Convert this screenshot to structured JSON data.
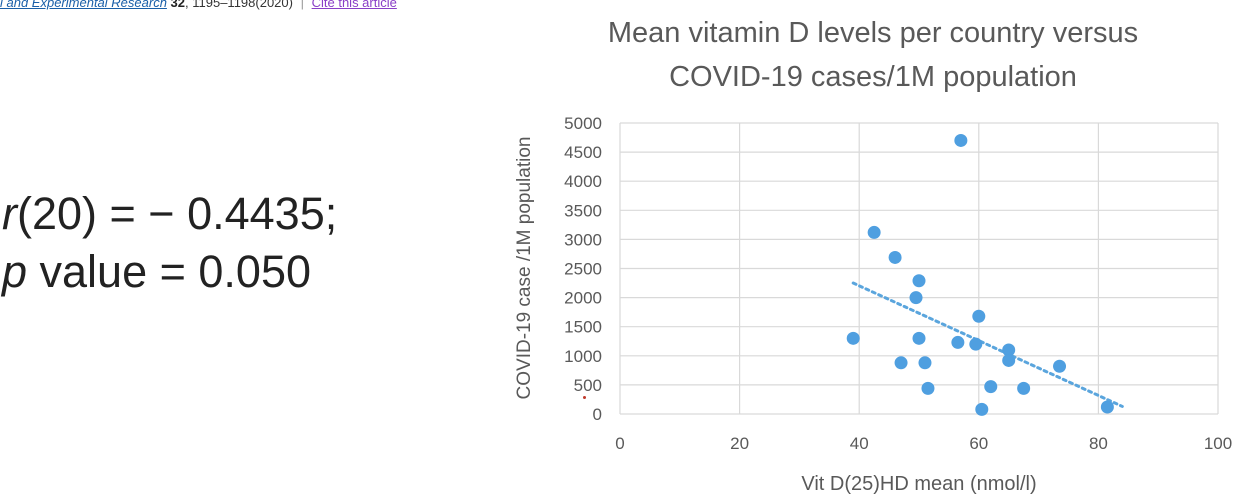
{
  "citation": {
    "journal": "l and Experimental Research",
    "volume": "32",
    "pages": "1195–1198(2020)",
    "separator": "|",
    "cite_link": "Cite this article"
  },
  "stats": {
    "r_var": "r",
    "r_rest": "(20) = − 0.4435;",
    "p_var": "p",
    "p_rest": " value = 0.050"
  },
  "chart_data": {
    "type": "scatter",
    "title": [
      "Mean vitamin D  levels per country versus",
      "COVID-19 cases/1M population"
    ],
    "xlabel": "Vit D(25)HD mean (nmol/l)",
    "ylabel": "COVID-19 case /1M population",
    "xlim": [
      0,
      100
    ],
    "ylim": [
      0,
      5000
    ],
    "xticks": [
      0,
      20,
      40,
      60,
      80,
      100
    ],
    "yticks": [
      0,
      500,
      1000,
      1500,
      2000,
      2500,
      3000,
      3500,
      4000,
      4500,
      5000
    ],
    "grid": true,
    "color": "#4f9fe0",
    "trendline_color": "#5aa5dd",
    "points": [
      {
        "x": 39,
        "y": 1300
      },
      {
        "x": 42.5,
        "y": 3120
      },
      {
        "x": 46,
        "y": 2690
      },
      {
        "x": 47,
        "y": 880
      },
      {
        "x": 49.5,
        "y": 2000
      },
      {
        "x": 50,
        "y": 2290
      },
      {
        "x": 50,
        "y": 1300
      },
      {
        "x": 51,
        "y": 880
      },
      {
        "x": 51.5,
        "y": 440
      },
      {
        "x": 56.5,
        "y": 1230
      },
      {
        "x": 57,
        "y": 4700
      },
      {
        "x": 59.5,
        "y": 1200
      },
      {
        "x": 60,
        "y": 1680
      },
      {
        "x": 60.5,
        "y": 80
      },
      {
        "x": 62,
        "y": 470
      },
      {
        "x": 65,
        "y": 1100
      },
      {
        "x": 65,
        "y": 920
      },
      {
        "x": 67.5,
        "y": 440
      },
      {
        "x": 73.5,
        "y": 820
      },
      {
        "x": 81.5,
        "y": 120
      }
    ],
    "trendline": {
      "x0": 39,
      "y0": 2250,
      "x1": 84,
      "y1": 130
    }
  }
}
